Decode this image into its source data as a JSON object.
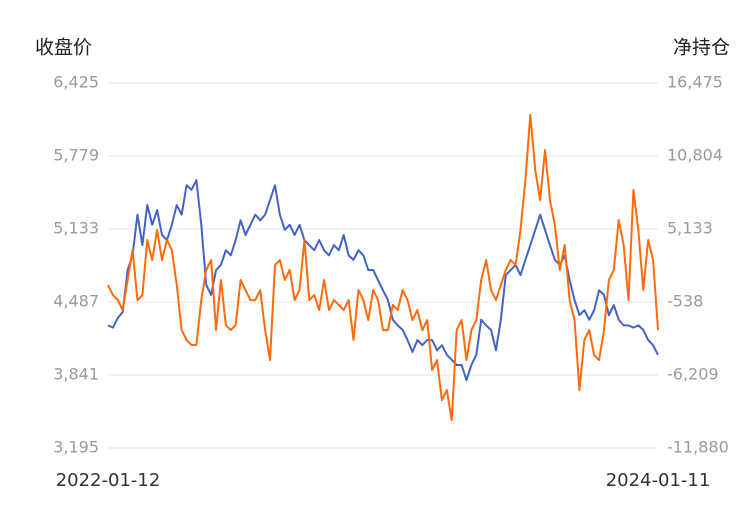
{
  "chart_data": {
    "type": "line",
    "y_label": "收盘价",
    "y2_label": "净持仓",
    "categories": [
      "2022-01-12",
      null,
      null,
      null,
      null,
      null,
      null,
      null,
      null,
      null,
      null,
      null,
      null,
      null,
      null,
      null,
      null,
      null,
      null,
      null,
      null,
      null,
      null,
      null,
      null,
      null,
      null,
      null,
      null,
      null,
      null,
      null,
      null,
      null,
      null,
      null,
      null,
      null,
      null,
      null,
      null,
      null,
      null,
      null,
      null,
      null,
      null,
      null,
      null,
      null,
      null,
      null,
      null,
      null,
      null,
      null,
      null,
      null,
      null,
      null,
      null,
      null,
      null,
      null,
      null,
      null,
      null,
      null,
      null,
      null,
      null,
      null,
      null,
      null,
      null,
      null,
      null,
      null,
      null,
      null,
      null,
      null,
      null,
      null,
      null,
      null,
      null,
      null,
      null,
      null,
      null,
      null,
      null,
      null,
      null,
      null,
      null,
      null,
      null,
      null,
      null,
      null,
      null,
      null,
      null,
      null,
      null,
      null,
      null,
      null,
      null,
      null,
      "2024-01-11"
    ],
    "series": [
      {
        "color": "#4462c6",
        "values": [
          4280,
          4260,
          4345,
          4400,
          4770,
          4900,
          5260,
          4990,
          5345,
          5170,
          5300,
          5080,
          5035,
          5170,
          5345,
          5260,
          5520,
          5480,
          5565,
          5170,
          4640,
          4550,
          4770,
          4815,
          4945,
          4900,
          5035,
          5210,
          5080,
          5170,
          5260,
          5210,
          5260,
          5390,
          5520,
          5260,
          5125,
          5170,
          5080,
          5170,
          5035,
          4990,
          4945,
          5035,
          4945,
          4900,
          4990,
          4945,
          5080,
          4900,
          4860,
          4945,
          4900,
          4770,
          4770,
          4680,
          4590,
          4505,
          4330,
          4280,
          4240,
          4150,
          4045,
          4150,
          4105,
          4150,
          4150,
          4060,
          4105,
          4020,
          3975,
          3930,
          3930,
          3795,
          3930,
          4020,
          4330,
          4280,
          4240,
          4060,
          4330,
          4725,
          4770,
          4815,
          4725,
          4860,
          4990,
          5125,
          5260,
          5125,
          4990,
          4860,
          4815,
          4900,
          4680,
          4505,
          4370,
          4415,
          4330,
          4415,
          4590,
          4550,
          4370,
          4460,
          4330,
          4280,
          4280,
          4260,
          4280,
          4240,
          4150,
          4105,
          4020
        ]
      },
      {
        "color": "#ff6a0d",
        "axis": "y2",
        "values": [
          780,
          0,
          -390,
          -1160,
          1170,
          3500,
          -390,
          0,
          4280,
          2720,
          5050,
          2720,
          4280,
          3500,
          780,
          -2720,
          -3490,
          -3880,
          -3880,
          -390,
          1950,
          2720,
          -2720,
          1170,
          -2330,
          -2720,
          -2330,
          1170,
          390,
          -390,
          -390,
          390,
          -2720,
          -5050,
          2330,
          2720,
          1170,
          1950,
          -390,
          390,
          4280,
          -390,
          0,
          -1160,
          1170,
          -1160,
          -390,
          -770,
          -1160,
          -390,
          -3490,
          390,
          -390,
          -1940,
          390,
          -390,
          -2720,
          -2720,
          -770,
          -1160,
          390,
          -390,
          -1940,
          -1160,
          -2720,
          -1940,
          -5820,
          -5050,
          -8160,
          -7380,
          -9710,
          -2720,
          -1940,
          -5050,
          -2720,
          -1940,
          1170,
          2720,
          390,
          -390,
          780,
          1950,
          2720,
          2330,
          5050,
          8940,
          13990,
          9720,
          7380,
          11270,
          7380,
          5440,
          1950,
          3890,
          -390,
          -1940,
          -7380,
          -3490,
          -2720,
          -4660,
          -5050,
          -2720,
          1170,
          1950,
          5830,
          3890,
          -390,
          8160,
          5050,
          390,
          4280,
          2720,
          -2720
        ]
      }
    ],
    "ylim": [
      3195,
      6425
    ],
    "yticks": [
      {
        "value": 3195,
        "label": "3,195"
      },
      {
        "value": 3841,
        "label": "3,841"
      },
      {
        "value": 4487,
        "label": "4,487"
      },
      {
        "value": 5133,
        "label": "5,133"
      },
      {
        "value": 5779,
        "label": "5,779"
      },
      {
        "value": 6425,
        "label": "6,425"
      }
    ],
    "y2lim": [
      -11880,
      16475
    ],
    "y2ticks": [
      {
        "value": -11880,
        "label": "-11,880"
      },
      {
        "value": -6209,
        "label": "-6,209"
      },
      -538,
      {
        "value": 5133,
        "label": "5,133"
      },
      {
        "value": 10804,
        "label": "10,804"
      },
      {
        "value": 16475,
        "label": "16,475"
      }
    ],
    "grid": true
  }
}
